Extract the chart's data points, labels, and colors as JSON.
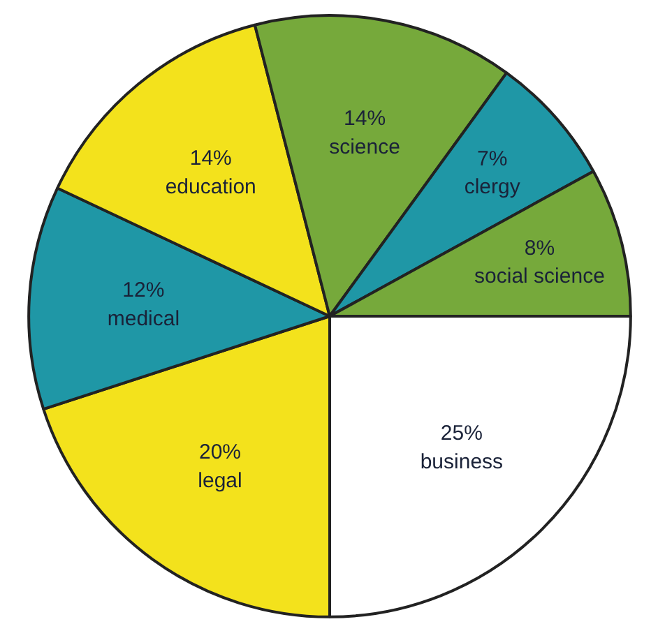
{
  "chart_data": {
    "type": "pie",
    "categories": [
      "business",
      "legal",
      "medical",
      "education",
      "science",
      "clergy",
      "social science"
    ],
    "values": [
      25,
      20,
      12,
      14,
      14,
      7,
      8
    ],
    "value_labels": [
      "25%",
      "20%",
      "12%",
      "14%",
      "14%",
      "7%",
      "8%"
    ],
    "colors": [
      "#ffffff",
      "#f3e21c",
      "#1f97a6",
      "#f3e21c",
      "#76a93b",
      "#1f97a6",
      "#76a93b"
    ]
  }
}
